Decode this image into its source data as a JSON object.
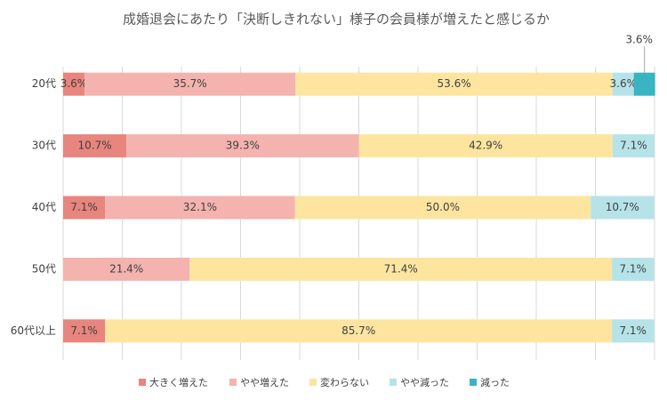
{
  "chart_data": {
    "type": "stacked-barh",
    "title": "成婚退会にあたり「決断しきれない」様子の会員様が増えたと感じるか",
    "categories": [
      "20代",
      "30代",
      "40代",
      "50代",
      "60代以上"
    ],
    "series": [
      {
        "name": "大きく増えた",
        "color": "#e8857e",
        "values": [
          3.6,
          10.7,
          7.1,
          null,
          7.1
        ],
        "value_labels": [
          "3.6%",
          "10.7%",
          "7.1%",
          null,
          "7.1%"
        ]
      },
      {
        "name": "やや増えた",
        "color": "#f4b3ae",
        "values": [
          35.7,
          39.3,
          32.1,
          21.4,
          null
        ],
        "value_labels": [
          "35.7%",
          "39.3%",
          "32.1%",
          "21.4%",
          null
        ]
      },
      {
        "name": "変わらない",
        "color": "#fde5a0",
        "values": [
          53.6,
          42.9,
          50.0,
          71.4,
          85.7
        ],
        "value_labels": [
          "53.6%",
          "42.9%",
          "50.0%",
          "71.4%",
          "85.7%"
        ]
      },
      {
        "name": "やや減った",
        "color": "#b5e3e8",
        "values": [
          3.6,
          7.1,
          10.7,
          7.1,
          7.1
        ],
        "value_labels": [
          "3.6%",
          "7.1%",
          "10.7%",
          "7.1%",
          "7.1%"
        ]
      },
      {
        "name": "減った",
        "color": "#3bb4c1",
        "values": [
          3.6,
          null,
          null,
          null,
          null
        ],
        "value_labels": [
          "3.6%",
          null,
          null,
          null,
          null
        ]
      }
    ],
    "xlim": [
      0,
      100
    ],
    "xticks": [
      0,
      10,
      20,
      30,
      40,
      50,
      60,
      70,
      80,
      90,
      100
    ],
    "grid": true,
    "legend": "bottom"
  }
}
